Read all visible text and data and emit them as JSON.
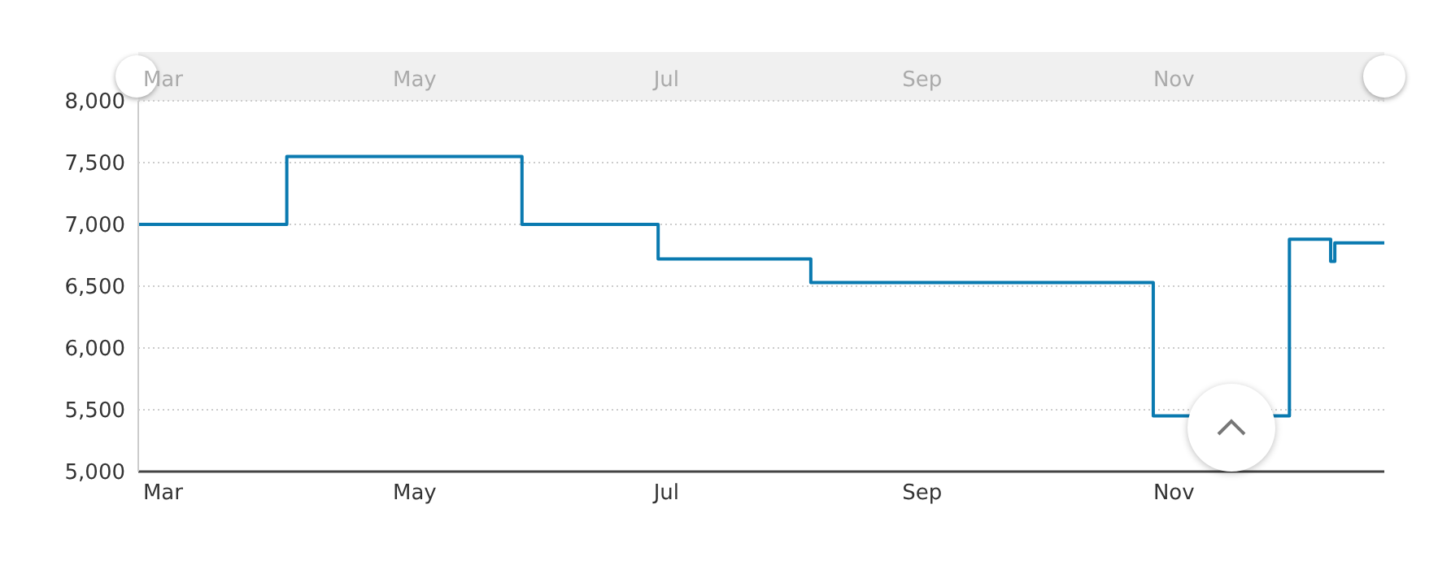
{
  "chart_data": {
    "type": "step",
    "x": [
      "--02-23",
      "--03-31",
      "--05-27",
      "--06-29",
      "--08-05",
      "--10-27",
      "--11-29",
      "--12-09",
      "--12-10",
      "--12-22"
    ],
    "series": [
      {
        "color": "#0a7ab0",
        "values": [
          7000,
          7550,
          7000,
          6720,
          6530,
          5450,
          6880,
          6700,
          6850,
          6850
        ]
      }
    ],
    "xlim": [
      "--02-23",
      "--12-22"
    ],
    "xticks": [
      {
        "value": "--03-01",
        "label": "Mar"
      },
      {
        "value": "--05-01",
        "label": "May"
      },
      {
        "value": "--07-01",
        "label": "Jul"
      },
      {
        "value": "--09-01",
        "label": "Sep"
      },
      {
        "value": "--11-01",
        "label": "Nov"
      }
    ],
    "x2lim": [
      "--02-23",
      "--12-22"
    ],
    "x2ticks": [
      {
        "value": "--03-01",
        "label": "Mar"
      },
      {
        "value": "--05-01",
        "label": "May"
      },
      {
        "value": "--07-01",
        "label": "Jul"
      },
      {
        "value": "--09-01",
        "label": "Sep"
      },
      {
        "value": "--11-01",
        "label": "Nov"
      }
    ],
    "ylim": [
      5000,
      8000
    ],
    "yticks": [
      {
        "value": 5000,
        "label": "5,000"
      },
      {
        "value": 5500,
        "label": "5,500"
      },
      {
        "value": 6000,
        "label": "6,000"
      },
      {
        "value": 6500,
        "label": "6,500"
      },
      {
        "value": 7000,
        "label": "7,000"
      },
      {
        "value": 7500,
        "label": "7,500"
      },
      {
        "value": 8000,
        "label": "8,000"
      }
    ],
    "grid": "y",
    "legend": false,
    "marker": "none",
    "line_style": "solid"
  }
}
